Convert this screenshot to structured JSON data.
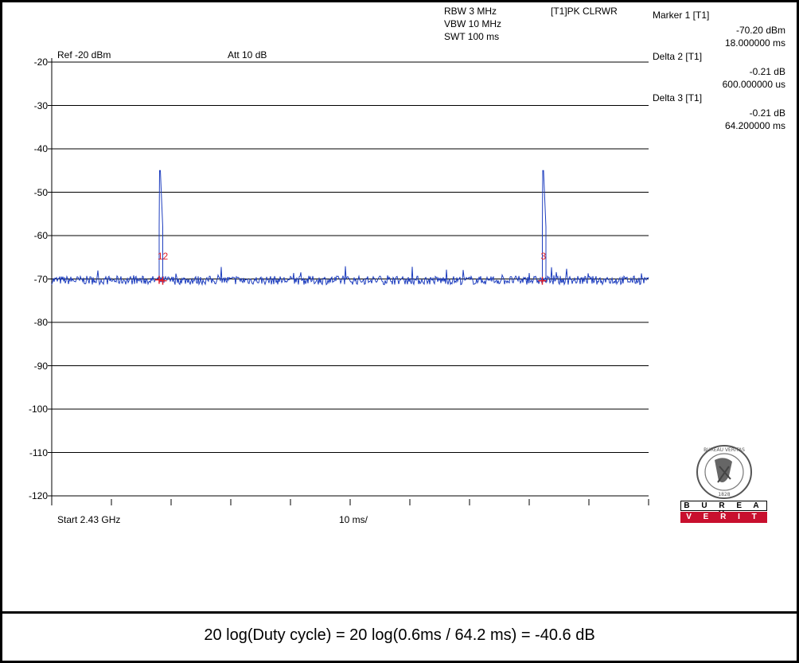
{
  "settings": {
    "rbw": "RBW 3 MHz",
    "vbw": "VBW 10 MHz",
    "swt": "SWT 100 ms",
    "trace": "[T1]PK CLRWR",
    "ref": "Ref -20 dBm",
    "att": "Att  10 dB"
  },
  "markers_panel": {
    "m1_label": "Marker 1 [T1]",
    "m1_level": "-70.20 dBm",
    "m1_time": "18.000000 ms",
    "d2_label": "Delta 2 [T1]",
    "d2_level": "-0.21 dB",
    "d2_time": "600.000000 us",
    "d3_label": "Delta 3 [T1]",
    "d3_level": "-0.21 dB",
    "d3_time": "64.200000 ms"
  },
  "x_axis": {
    "start_label": "Start 2.43 GHz",
    "div_label": "10 ms/"
  },
  "logo": {
    "name": "bureau-veritas-logo",
    "top_text": "B U R E A U",
    "bottom_text": "V E R I T A S",
    "seal_text": "BUREAU VERITAS",
    "year": "1828",
    "brand_red": "#c8102e"
  },
  "formula": "20 log(Duty cycle) = 20 log(0.6ms / 64.2 ms) = -40.6 dB",
  "chart_data": {
    "type": "line",
    "xlim": [
      0,
      100
    ],
    "ylim": [
      -120,
      -20
    ],
    "y_ticks": [
      -20,
      -30,
      -40,
      -50,
      -60,
      -70,
      -80,
      -90,
      -100,
      -110,
      -120
    ],
    "x_unit": "ms",
    "noise_floor": -70.3,
    "trace_color": "#1f3fbf",
    "marker_color": "#e0202a",
    "pulses": [
      {
        "start": 18.0,
        "end": 18.6,
        "peak": -45
      },
      {
        "start": 82.2,
        "end": 82.8,
        "peak": -45
      }
    ],
    "markers": [
      {
        "label": "1",
        "x": 18.0,
        "y": -70.2
      },
      {
        "label": "2",
        "x": 18.6,
        "y": -70.41
      },
      {
        "label": "3",
        "x": 82.2,
        "y": -70.41
      }
    ]
  }
}
